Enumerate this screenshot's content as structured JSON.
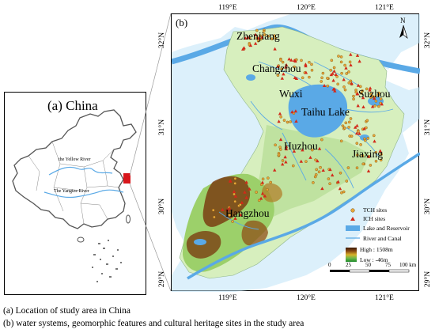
{
  "panel_a": {
    "title": "(a) China",
    "yellow_river_label": "the Yellow River",
    "yangtze_river_label": "The Yangtze River"
  },
  "panel_b": {
    "label": "(b)",
    "north_arrow": "N",
    "top_ticks": [
      "119°E",
      "120°E",
      "121°E"
    ],
    "bottom_ticks": [
      "119°E",
      "120°E",
      "121°E"
    ],
    "left_ticks": [
      "32°N",
      "31°N",
      "30°N",
      "29°N"
    ],
    "right_ticks": [
      "32°N",
      "31°N",
      "30°N",
      "29°N"
    ],
    "cities": [
      "Zhenjiang",
      "Changzhou",
      "Wuxi",
      "Suzhou",
      "Taihu Lake",
      "Huzhou",
      "Jiaxing",
      "Hangzhou"
    ],
    "legend": {
      "tch": "TCH sites",
      "ich": "ICH sites",
      "lake": "Lake and Reservoir",
      "river": "River and Canal",
      "high": "High : 1508m",
      "low": "Low : -46m"
    },
    "scale_bar": {
      "labels": [
        "0",
        "25",
        "50",
        "75",
        "100 km"
      ]
    }
  },
  "captions": {
    "a": "(a) Location of study area in China",
    "b": "(b) water systems, geomorphic features and cultural heritage sites in the study area"
  },
  "colors": {
    "water": "#5aa9e6",
    "lowland": "#cfeab4",
    "hills": "#7fbf5a",
    "mountain_dark": "#6b3a12",
    "tch_marker": "#e8a93a",
    "ich_marker": "#d22a1a",
    "study_area_china": "#d8161b"
  }
}
